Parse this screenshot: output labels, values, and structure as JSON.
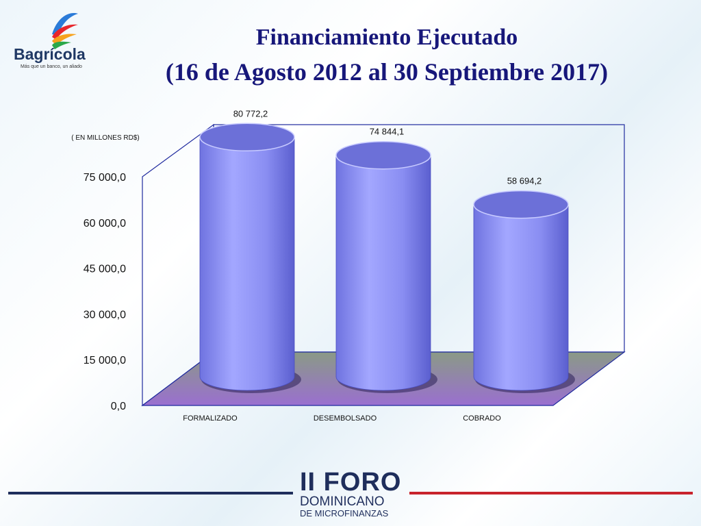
{
  "logo": {
    "name": "Bagrícola",
    "tagline": "Más que un banco, un aliado"
  },
  "title_line1": "Financiamiento Ejecutado",
  "title_line2": "(16 de Agosto 2012 al 30 Septiembre 2017)",
  "chart_data": {
    "type": "bar",
    "style": "3d-cylinder",
    "unit_label": "( EN MILLONES RD$)",
    "categories": [
      "FORMALIZADO",
      "DESEMBOLSADO",
      "COBRADO"
    ],
    "values": [
      80772.2,
      74844.1,
      58694.2
    ],
    "data_labels": [
      "80 772,2",
      "74 844,1",
      "58 694,2"
    ],
    "y_ticks": [
      "0,0",
      "15 000,0",
      "30 000,0",
      "45 000,0",
      "60 000,0",
      "75 000,0"
    ],
    "ylim": [
      0,
      75000
    ],
    "colors": {
      "bar": "#8a8ef2",
      "floor": "#9b7fd0",
      "frame": "#1f2a9e"
    }
  },
  "footer": {
    "event_big": "II FORO",
    "event_line2": "DOMINICANO",
    "event_line3": "DE MICROFINANZAS",
    "colors": {
      "navy": "#1f2e5c",
      "red": "#c8232c"
    }
  }
}
